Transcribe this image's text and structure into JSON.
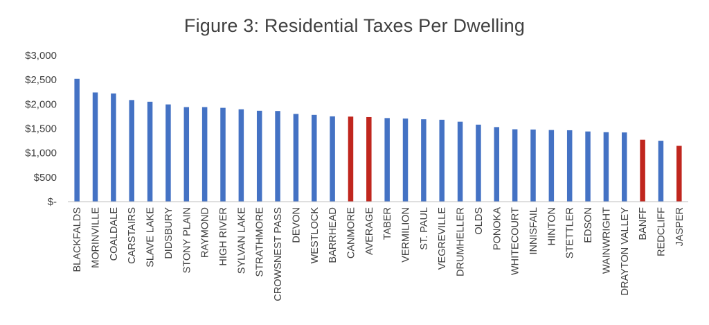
{
  "chart_data": {
    "type": "bar",
    "title": "Figure 3: Residential Taxes Per Dwelling",
    "xlabel": "",
    "ylabel": "",
    "ylim": [
      0,
      3000
    ],
    "y_ticks": [
      {
        "value": 0,
        "label": "$-"
      },
      {
        "value": 500,
        "label": "$500"
      },
      {
        "value": 1000,
        "label": "$1,000"
      },
      {
        "value": 1500,
        "label": "$1,500"
      },
      {
        "value": 2000,
        "label": "$2,000"
      },
      {
        "value": 2500,
        "label": "$2,500"
      },
      {
        "value": 3000,
        "label": "$3,000"
      }
    ],
    "grid": false,
    "legend": "none",
    "colors": {
      "default": "#4472C4",
      "highlight": "#C0261E",
      "axis": "#BFBFBF",
      "text": "#404040"
    },
    "categories": [
      "BLACKFALDS",
      "MORINVILLE",
      "COALDALE",
      "CARSTAIRS",
      "SLAVE LAKE",
      "DIDSBURY",
      "STONY PLAIN",
      "RAYMOND",
      "HIGH RIVER",
      "SYLVAN LAKE",
      "STRATHMORE",
      "CROWSNEST PASS",
      "DEVON",
      "WESTLOCK",
      "BARRHEAD",
      "CANMORE",
      "AVERAGE",
      "TABER",
      "VERMILION",
      "ST. PAUL",
      "VEGREVILLE",
      "DRUMHELLER",
      "OLDS",
      "PONOKA",
      "WHITECOURT",
      "INNISFAIL",
      "HINTON",
      "STETTLER",
      "EDSON",
      "WAINWRIGHT",
      "DRAYTON VALLEY",
      "BANFF",
      "REDCLIFF",
      "JASPER"
    ],
    "values": [
      2520,
      2240,
      2220,
      2085,
      2050,
      1995,
      1940,
      1940,
      1925,
      1895,
      1865,
      1860,
      1800,
      1780,
      1750,
      1745,
      1735,
      1715,
      1705,
      1690,
      1680,
      1640,
      1580,
      1530,
      1485,
      1480,
      1470,
      1465,
      1440,
      1425,
      1420,
      1270,
      1250,
      1145
    ],
    "highlighted": [
      "CANMORE",
      "AVERAGE",
      "BANFF",
      "JASPER"
    ]
  }
}
